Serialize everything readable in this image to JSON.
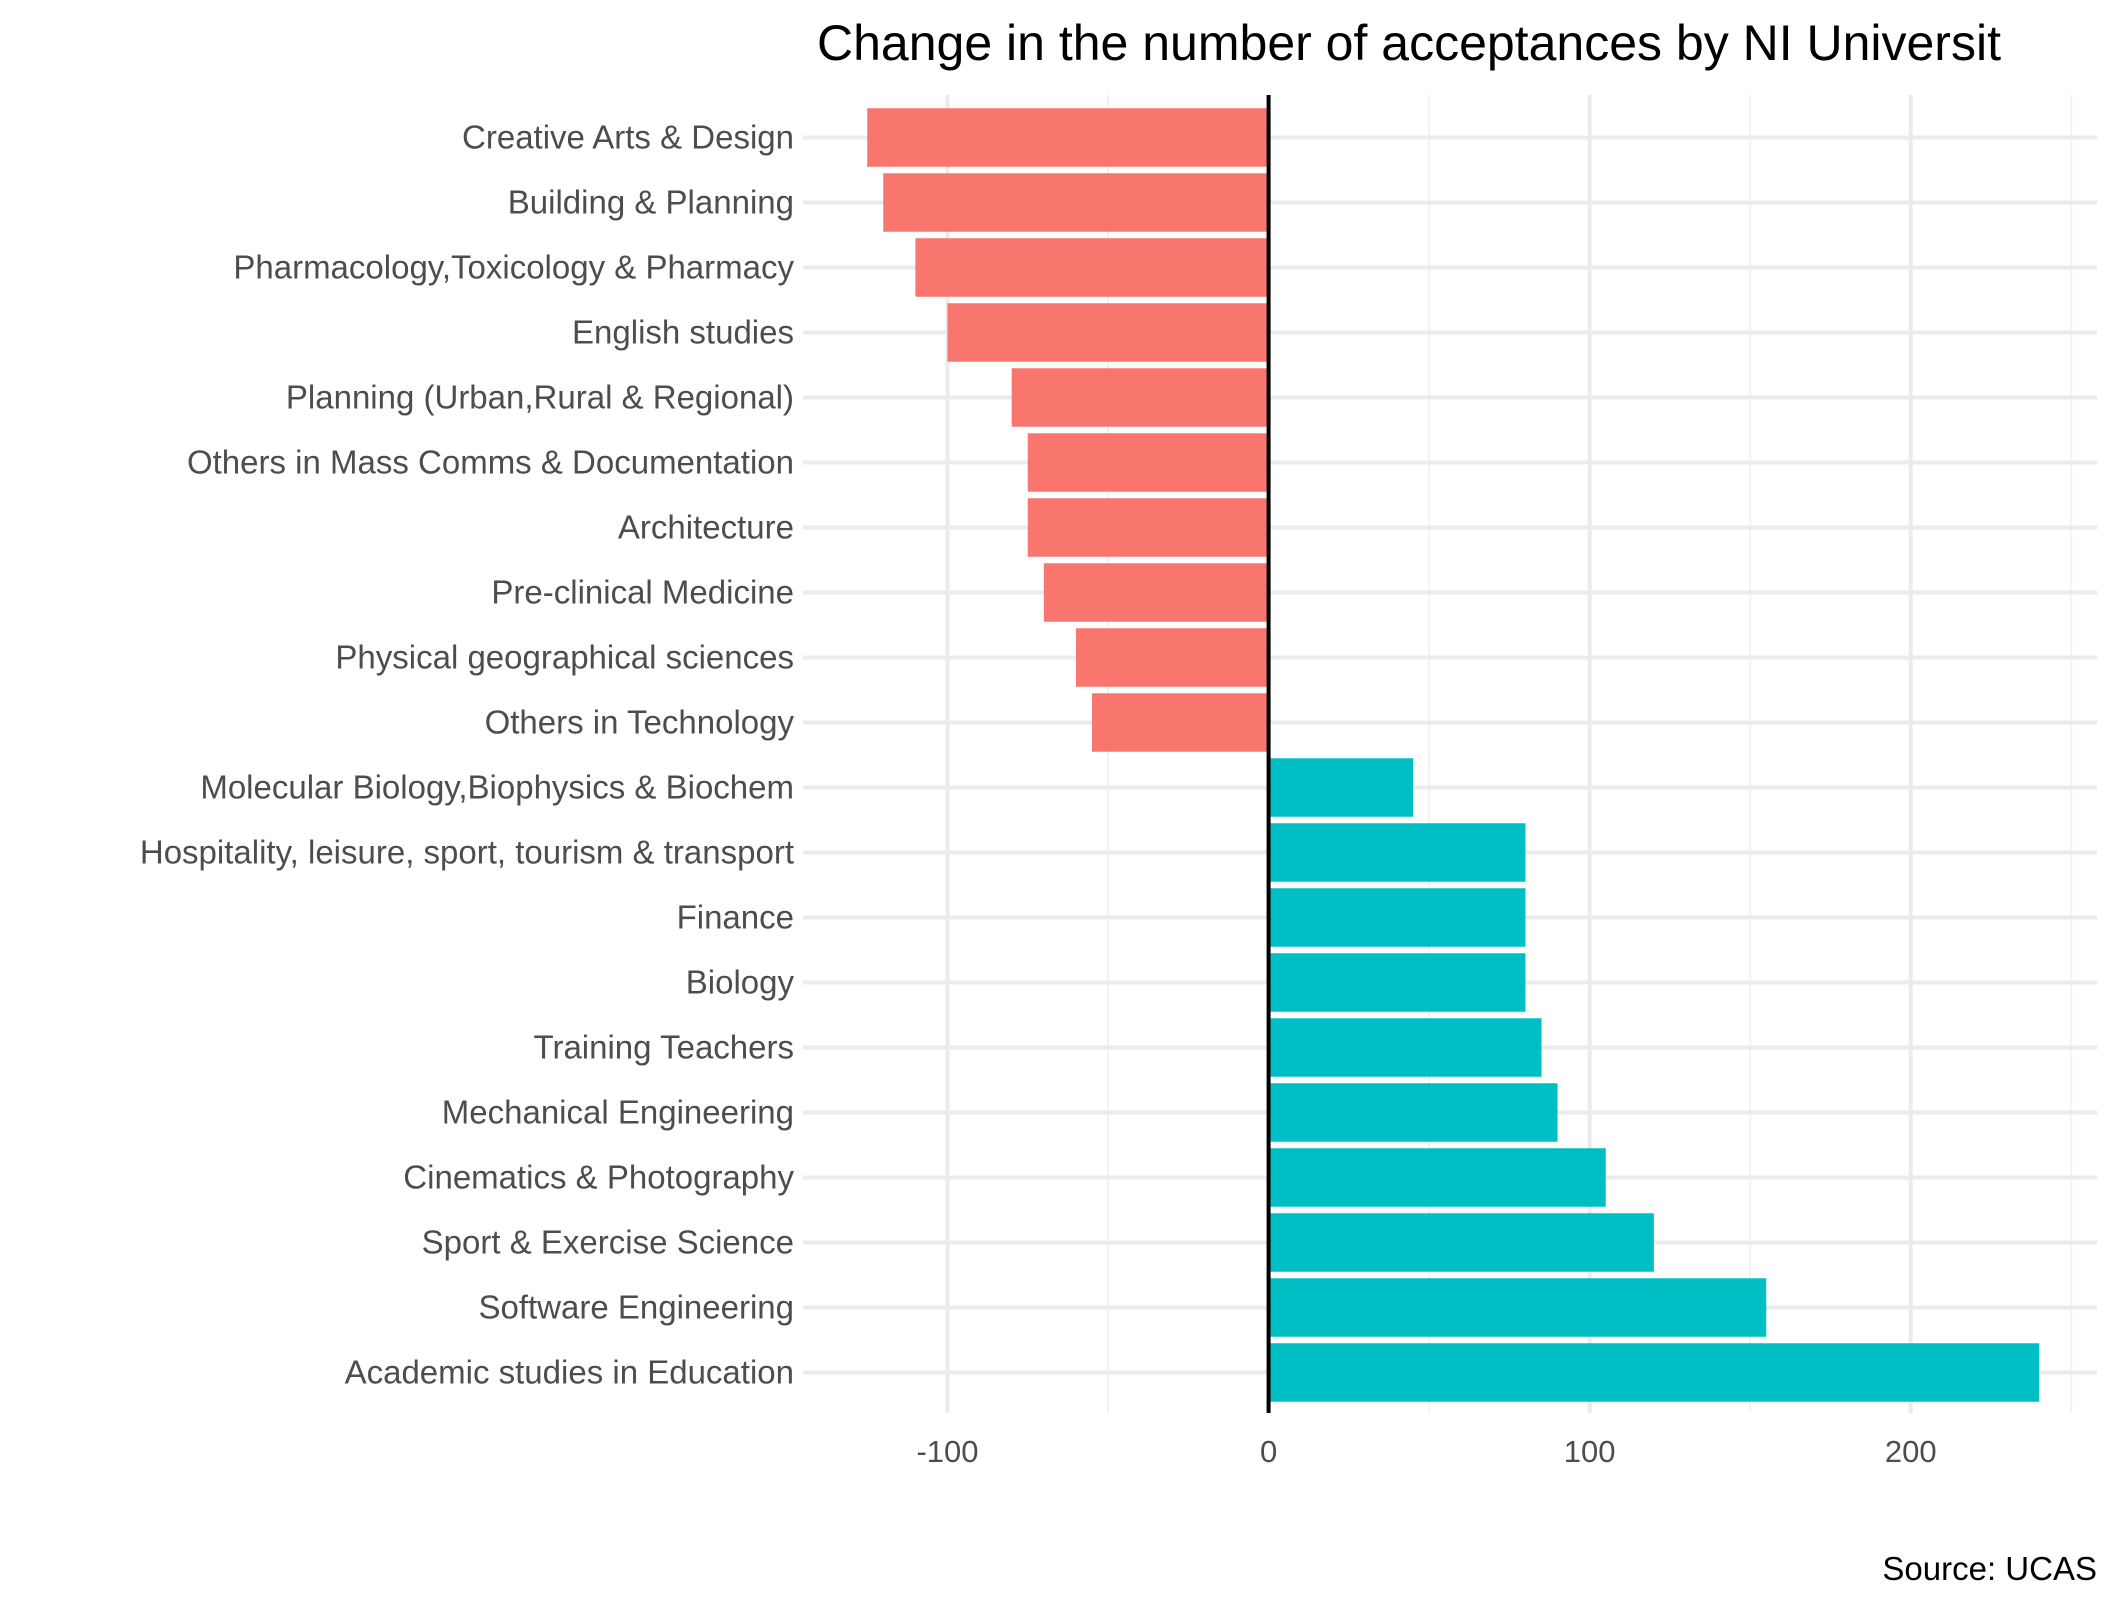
{
  "chart_data": {
    "type": "bar",
    "orientation": "horizontal",
    "title": "Change in the number of acceptances by NI Universit",
    "caption": "Source: UCAS",
    "xlabel": "",
    "ylabel": "",
    "xlim": [
      -145,
      258
    ],
    "x_ticks": [
      -100,
      0,
      100,
      200
    ],
    "x_tick_labels": [
      "-100",
      "0",
      "100",
      "200"
    ],
    "grid": true,
    "legend": "none",
    "colors": {
      "negative": "#F8766D",
      "positive": "#00BFC4",
      "zero_line": "#000000"
    },
    "categories": [
      "Creative Arts & Design",
      "Building & Planning",
      "Pharmacology,Toxicology & Pharmacy",
      "English studies",
      "Planning (Urban,Rural & Regional)",
      "Others in Mass Comms & Documentation",
      "Architecture",
      "Pre-clinical Medicine",
      "Physical geographical sciences",
      "Others in Technology",
      "Molecular Biology,Biophysics & Biochem",
      "Hospitality, leisure, sport, tourism & transport",
      "Finance",
      "Biology",
      "Training Teachers",
      "Mechanical Engineering",
      "Cinematics & Photography",
      "Sport & Exercise Science",
      "Software Engineering",
      "Academic studies in Education"
    ],
    "values": [
      -125,
      -120,
      -110,
      -100,
      -80,
      -75,
      -75,
      -70,
      -60,
      -55,
      45,
      80,
      80,
      80,
      85,
      90,
      105,
      120,
      155,
      240
    ]
  }
}
